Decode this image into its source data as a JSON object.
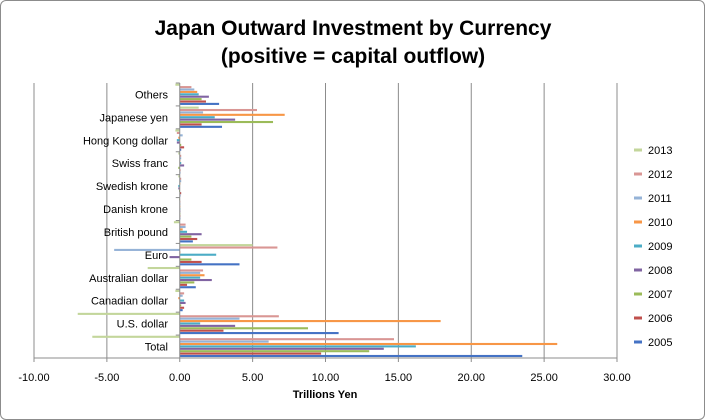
{
  "chart_data": {
    "type": "bar",
    "orientation": "horizontal",
    "title": "Japan Outward Investment by Currency",
    "subtitle": "(positive = capital outflow)",
    "xlabel": "Trillions Yen",
    "ylabel": "",
    "xlim": [
      -10,
      30
    ],
    "xticks": [
      "-10.00",
      "-5.00",
      "0.00",
      "5.00",
      "10.00",
      "15.00",
      "20.00",
      "25.00",
      "30.00"
    ],
    "grid": true,
    "legend_position": "right",
    "categories": [
      "Others",
      "Japanese yen",
      "Hong Kong dollar",
      "Swiss franc",
      "Swedish krone",
      "Danish krone",
      "British pound",
      "Euro",
      "Australian dollar",
      "Canadian dollar",
      "U.S. dollar",
      "Total"
    ],
    "series": [
      {
        "name": "2005",
        "color": "#4472C4",
        "values": [
          2.7,
          2.9,
          0.1,
          0.0,
          0.05,
          0.0,
          0.9,
          4.1,
          1.1,
          0.2,
          10.9,
          23.5
        ]
      },
      {
        "name": "2006",
        "color": "#C0504D",
        "values": [
          1.8,
          1.5,
          0.3,
          0.05,
          0.1,
          0.0,
          1.2,
          1.5,
          0.5,
          0.3,
          3.0,
          9.7
        ]
      },
      {
        "name": "2007",
        "color": "#9BBB59",
        "values": [
          1.5,
          6.4,
          0.1,
          -0.1,
          -0.05,
          0.0,
          0.8,
          0.8,
          1.0,
          0.1,
          8.8,
          13.0
        ]
      },
      {
        "name": "2008",
        "color": "#8064A2",
        "values": [
          2.0,
          3.8,
          -0.2,
          0.3,
          -0.1,
          0.0,
          1.5,
          -0.7,
          2.2,
          0.4,
          3.8,
          14.0
        ]
      },
      {
        "name": "2009",
        "color": "#4BACC6",
        "values": [
          1.3,
          2.4,
          -0.2,
          0.1,
          -0.1,
          0.0,
          0.5,
          2.5,
          1.4,
          0.3,
          1.4,
          16.2
        ]
      },
      {
        "name": "2010",
        "color": "#F79646",
        "values": [
          1.2,
          7.2,
          -0.1,
          0.0,
          0.0,
          0.0,
          0.2,
          0.0,
          1.7,
          -0.1,
          17.9,
          25.9
        ]
      },
      {
        "name": "2011",
        "color": "#95B3D7",
        "values": [
          1.0,
          1.6,
          0.2,
          0.1,
          0.1,
          0.0,
          0.4,
          -4.5,
          1.4,
          0.2,
          4.1,
          6.1
        ]
      },
      {
        "name": "2012",
        "color": "#D99694",
        "values": [
          0.8,
          5.3,
          -0.2,
          0.1,
          0.1,
          0.0,
          0.4,
          6.7,
          1.6,
          0.3,
          6.8,
          14.7
        ]
      },
      {
        "name": "2013",
        "color": "#C3D69B",
        "values": [
          -0.3,
          1.3,
          -0.3,
          -0.1,
          -0.1,
          -0.05,
          -0.4,
          5.0,
          -2.2,
          -0.3,
          -7.0,
          -6.0
        ]
      }
    ]
  }
}
